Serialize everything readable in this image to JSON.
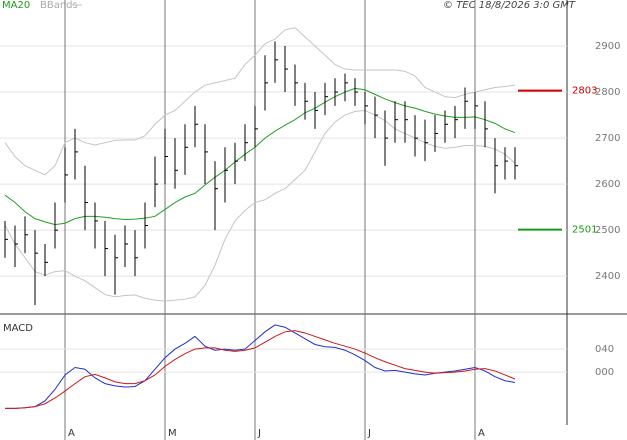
{
  "chart_data": [
    {
      "type": "ohlc",
      "copyright": "© TEC 18/8/2026 3:0 GMT",
      "categories": [
        null,
        null,
        null,
        null,
        null,
        null,
        "A",
        null,
        null,
        null,
        null,
        null,
        null,
        null,
        null,
        null,
        "M",
        null,
        null,
        null,
        null,
        null,
        null,
        null,
        null,
        "J",
        null,
        null,
        null,
        null,
        null,
        null,
        null,
        null,
        null,
        null,
        "J",
        null,
        null,
        null,
        null,
        null,
        null,
        null,
        null,
        null,
        null,
        "A",
        null,
        null,
        null,
        null
      ],
      "high": [
        2520,
        2510,
        2530,
        2500,
        2470,
        2560,
        2680,
        2720,
        2640,
        2560,
        2520,
        2490,
        2510,
        2500,
        2560,
        2660,
        2720,
        2700,
        2730,
        2770,
        2730,
        2650,
        2680,
        2690,
        2730,
        2770,
        2880,
        2910,
        2900,
        2860,
        2820,
        2800,
        2820,
        2830,
        2840,
        2830,
        2800,
        2790,
        2760,
        2780,
        2780,
        2750,
        2740,
        2750,
        2760,
        2770,
        2810,
        2800,
        2780,
        2700,
        2680,
        2680
      ],
      "low": [
        2440,
        2420,
        2450,
        2337,
        2400,
        2460,
        2560,
        2610,
        2500,
        2460,
        2400,
        2360,
        2420,
        2400,
        2460,
        2550,
        2600,
        2590,
        2620,
        2680,
        2600,
        2500,
        2560,
        2600,
        2650,
        2680,
        2760,
        2820,
        2800,
        2770,
        2740,
        2720,
        2750,
        2770,
        2780,
        2770,
        2730,
        2700,
        2640,
        2690,
        2690,
        2660,
        2650,
        2670,
        2690,
        2700,
        2720,
        2720,
        2680,
        2580,
        2610,
        2610
      ],
      "close": [
        2480,
        2470,
        2490,
        2450,
        2430,
        2500,
        2620,
        2670,
        2560,
        2520,
        2460,
        2440,
        2470,
        2440,
        2510,
        2600,
        2660,
        2630,
        2680,
        2730,
        2670,
        2590,
        2630,
        2650,
        2690,
        2720,
        2820,
        2870,
        2850,
        2820,
        2780,
        2760,
        2790,
        2800,
        2820,
        2800,
        2770,
        2750,
        2700,
        2740,
        2740,
        2700,
        2690,
        2710,
        2730,
        2740,
        2780,
        2770,
        2720,
        2640,
        2650,
        2640
      ],
      "bar_color": "#000000",
      "series": [
        {
          "name": "MA20",
          "color": "#22a022",
          "values": [
            2576,
            2560,
            2540,
            2525,
            2518,
            2512,
            2515,
            2525,
            2530,
            2530,
            2528,
            2525,
            2523,
            2524,
            2526,
            2530,
            2545,
            2560,
            2572,
            2580,
            2598,
            2615,
            2630,
            2648,
            2665,
            2680,
            2700,
            2715,
            2728,
            2740,
            2755,
            2765,
            2778,
            2790,
            2800,
            2808,
            2805,
            2795,
            2785,
            2777,
            2770,
            2765,
            2758,
            2752,
            2748,
            2745,
            2745,
            2746,
            2740,
            2732,
            2720,
            2712
          ]
        },
        {
          "name": "BBands",
          "color": "#c4c4c4",
          "upper": [
            2690,
            2660,
            2640,
            2630,
            2620,
            2640,
            2690,
            2700,
            2690,
            2685,
            2690,
            2695,
            2696,
            2696,
            2705,
            2730,
            2750,
            2760,
            2780,
            2800,
            2815,
            2820,
            2825,
            2830,
            2860,
            2880,
            2905,
            2915,
            2935,
            2940,
            2920,
            2900,
            2880,
            2860,
            2850,
            2848,
            2848,
            2848,
            2848,
            2848,
            2845,
            2835,
            2810,
            2800,
            2790,
            2788,
            2795,
            2800,
            2805,
            2810,
            2812,
            2815
          ],
          "lower": [
            2511,
            2470,
            2440,
            2410,
            2402,
            2410,
            2412,
            2400,
            2390,
            2375,
            2360,
            2355,
            2358,
            2359,
            2352,
            2348,
            2346,
            2348,
            2350,
            2355,
            2380,
            2424,
            2480,
            2520,
            2543,
            2560,
            2566,
            2580,
            2590,
            2610,
            2630,
            2670,
            2710,
            2735,
            2750,
            2758,
            2760,
            2750,
            2738,
            2720,
            2710,
            2700,
            2690,
            2682,
            2678,
            2680,
            2684,
            2684,
            2682,
            2676,
            2665,
            2645
          ]
        }
      ],
      "levels": [
        {
          "value": 2803,
          "color": "#cc0000"
        },
        {
          "value": 2501,
          "color": "#1a9a1a"
        }
      ],
      "ylim": [
        2320,
        3000
      ],
      "yticks": [
        2400,
        2500,
        2600,
        2700,
        2800,
        2900
      ],
      "grid": true
    },
    {
      "type": "line",
      "title": "MACD",
      "series": [
        {
          "color": "#1f2fd0",
          "values": [
            -63,
            -63,
            -62,
            -60,
            -50,
            -30,
            -5,
            8,
            5,
            -10,
            -20,
            -24,
            -26,
            -25,
            -15,
            5,
            25,
            40,
            50,
            62,
            45,
            38,
            40,
            38,
            40,
            55,
            70,
            82,
            78,
            68,
            58,
            48,
            44,
            43,
            38,
            30,
            20,
            8,
            2,
            3,
            0,
            -3,
            -5,
            -2,
            0,
            2,
            5,
            8,
            2,
            -8,
            -15,
            -18
          ]
        },
        {
          "color": "#cc1a1a",
          "values": [
            -63,
            -63,
            -62,
            -60,
            -55,
            -45,
            -33,
            -20,
            -8,
            -4,
            -10,
            -17,
            -20,
            -20,
            -15,
            -5,
            10,
            22,
            32,
            40,
            42,
            42,
            38,
            36,
            38,
            42,
            52,
            62,
            70,
            72,
            68,
            62,
            56,
            50,
            45,
            40,
            33,
            25,
            18,
            12,
            6,
            3,
            0,
            -2,
            -1,
            0,
            2,
            5,
            6,
            2,
            -5,
            -12
          ]
        }
      ],
      "ylim": [
        -118,
        94
      ],
      "yticks": [
        {
          "value": 0,
          "label": "000"
        },
        {
          "value": 40,
          "label": "040"
        }
      ],
      "grid": true
    }
  ]
}
